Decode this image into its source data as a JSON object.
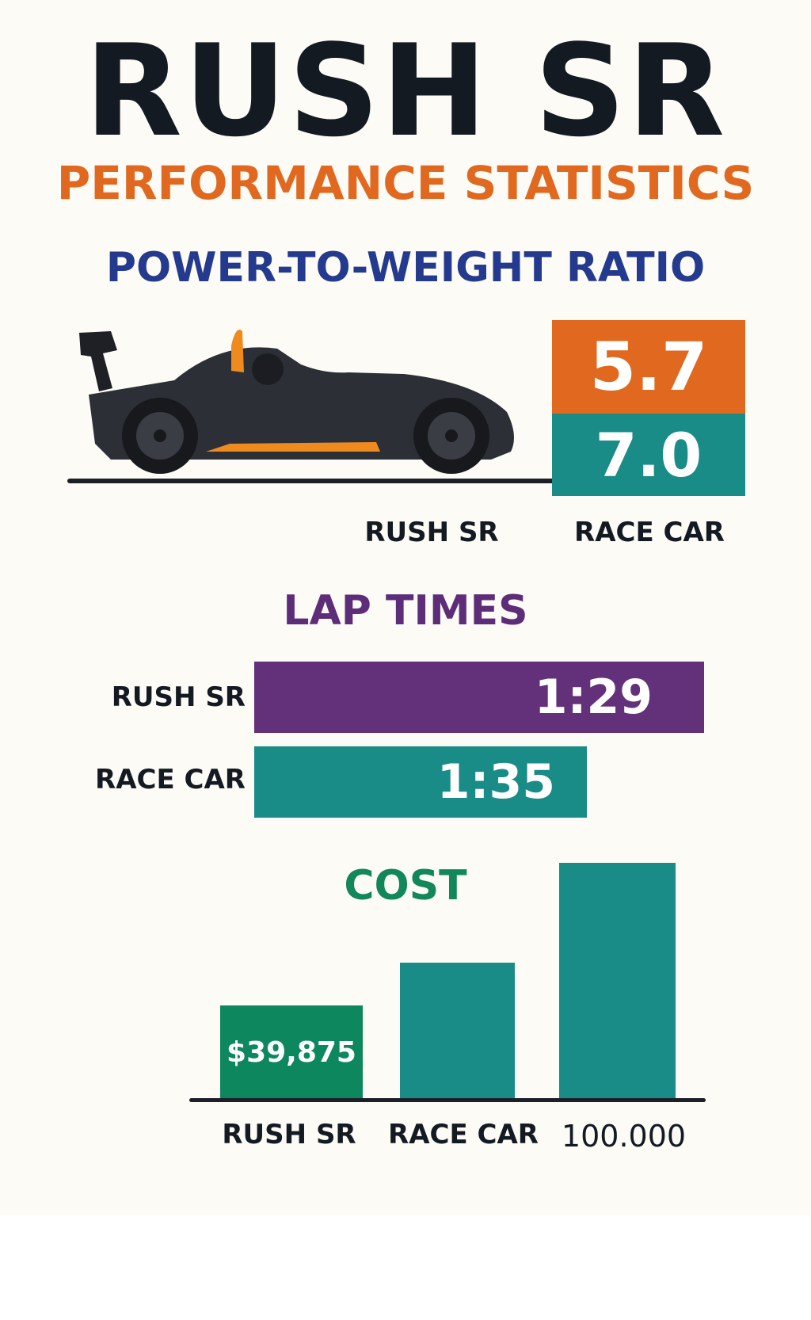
{
  "title": "RUSH SR",
  "subtitle": "PERFORMANCE STATISTICS",
  "colors": {
    "title": "#141a22",
    "subtitle": "#e0691f",
    "power": "#243a8e",
    "laps": "#5e2d79",
    "cost": "#12875a",
    "orange": "#e0691f",
    "teal": "#1a8c87",
    "green": "#0d875d",
    "background": "#fdfbf6"
  },
  "power_to_weight": {
    "heading": "POWER-TO-WEIGHT RATIO",
    "image": "car-illustration",
    "values": [
      {
        "label": "RUSH SR",
        "value": "5.7"
      },
      {
        "label": "RACE CAR",
        "value": "7.0"
      }
    ]
  },
  "lap_times": {
    "heading": "LAP TIMES",
    "rows": [
      {
        "label": "RUSH SR",
        "value": "1:29"
      },
      {
        "label": "RACE CAR",
        "value": "1:35"
      }
    ]
  },
  "chart_data": {
    "type": "bar",
    "title": "COST",
    "categories": [
      "RUSH SR",
      "RACE CAR",
      "100.000"
    ],
    "values": [
      39875,
      58000,
      100000
    ],
    "data_labels": [
      "$39,875",
      "",
      ""
    ],
    "ylim": [
      0,
      100000
    ],
    "grid": false
  }
}
